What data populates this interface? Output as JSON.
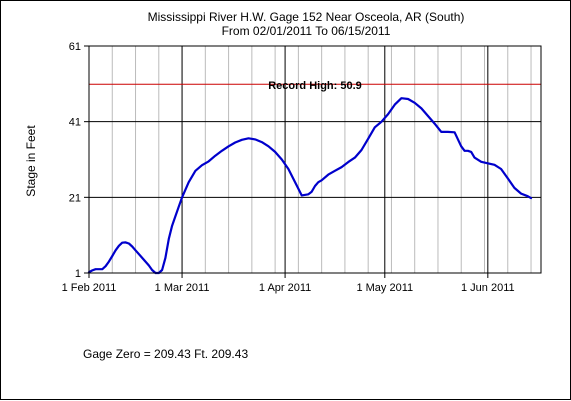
{
  "chart_data": {
    "type": "line",
    "title": "Mississippi River H.W. Gage 152 Near Osceola, AR (South)",
    "subtitle": "From 02/01/2011 To 06/15/2011",
    "xlabel": "",
    "ylabel": "Stage in Feet",
    "ylim": [
      1,
      61
    ],
    "yticks": [
      1,
      21,
      41,
      61
    ],
    "xlim": [
      "2011-02-01",
      "2011-06-17"
    ],
    "xticks": [
      {
        "date": "2011-02-01",
        "label": "1 Feb 2011"
      },
      {
        "date": "2011-03-01",
        "label": "1 Mar 2011"
      },
      {
        "date": "2011-04-01",
        "label": "1 Apr 2011"
      },
      {
        "date": "2011-05-01",
        "label": "1 May 2011"
      },
      {
        "date": "2011-06-01",
        "label": "1 Jun 2011"
      }
    ],
    "grid": true,
    "colors": {
      "series": "#0000cc",
      "record": "#cc0000",
      "grid_major": "#000000",
      "grid_minor": "#bbbbbb"
    },
    "record_high": {
      "label": "Record High: 50.9",
      "value": 50.9
    },
    "series": [
      {
        "x": [
          "2011-02-01",
          "2011-02-02",
          "2011-02-03",
          "2011-02-04",
          "2011-02-05",
          "2011-02-06",
          "2011-02-07",
          "2011-02-08",
          "2011-02-09",
          "2011-02-10",
          "2011-02-11",
          "2011-02-12",
          "2011-02-13",
          "2011-02-14",
          "2011-02-15",
          "2011-02-16",
          "2011-02-17",
          "2011-02-18",
          "2011-02-19",
          "2011-02-20",
          "2011-02-21",
          "2011-02-22",
          "2011-02-23",
          "2011-02-24",
          "2011-02-25",
          "2011-02-26",
          "2011-02-27",
          "2011-02-28",
          "2011-03-01",
          "2011-03-03",
          "2011-03-05",
          "2011-03-07",
          "2011-03-09",
          "2011-03-11",
          "2011-03-13",
          "2011-03-15",
          "2011-03-17",
          "2011-03-19",
          "2011-03-21",
          "2011-03-23",
          "2011-03-25",
          "2011-03-27",
          "2011-03-29",
          "2011-03-31",
          "2011-04-02",
          "2011-04-04",
          "2011-04-06",
          "2011-04-08",
          "2011-04-09",
          "2011-04-10",
          "2011-04-11",
          "2011-04-12",
          "2011-04-14",
          "2011-04-16",
          "2011-04-18",
          "2011-04-20",
          "2011-04-22",
          "2011-04-24",
          "2011-04-26",
          "2011-04-28",
          "2011-04-30",
          "2011-05-02",
          "2011-05-04",
          "2011-05-06",
          "2011-05-08",
          "2011-05-10",
          "2011-05-12",
          "2011-05-14",
          "2011-05-16",
          "2011-05-18",
          "2011-05-20",
          "2011-05-22",
          "2011-05-24",
          "2011-05-25",
          "2011-05-26",
          "2011-05-27",
          "2011-05-28",
          "2011-05-30",
          "2011-06-01",
          "2011-06-03",
          "2011-06-05",
          "2011-06-07",
          "2011-06-09",
          "2011-06-11",
          "2011-06-13",
          "2011-06-14"
        ],
        "values": [
          1.2,
          1.7,
          2.0,
          2.0,
          2.0,
          2.8,
          4.0,
          5.5,
          7.0,
          8.2,
          9.0,
          9.1,
          8.8,
          8.0,
          7.0,
          6.0,
          5.0,
          4.0,
          3.0,
          1.8,
          1.0,
          1.0,
          1.8,
          5.0,
          10.0,
          13.5,
          16.0,
          18.5,
          21.0,
          25.0,
          28.0,
          29.5,
          30.5,
          32.0,
          33.3,
          34.5,
          35.5,
          36.2,
          36.6,
          36.3,
          35.6,
          34.5,
          33.0,
          31.0,
          28.5,
          25.0,
          21.5,
          21.8,
          22.5,
          24.0,
          25.0,
          25.5,
          27.0,
          28.0,
          29.0,
          30.3,
          31.5,
          33.5,
          36.5,
          39.5,
          41.0,
          43.0,
          45.5,
          47.2,
          47.0,
          46.0,
          44.5,
          42.5,
          40.5,
          38.3,
          38.3,
          38.2,
          34.5,
          33.3,
          33.3,
          33.0,
          31.5,
          30.4,
          30.0,
          29.6,
          28.5,
          26.0,
          23.5,
          22.0,
          21.3,
          20.8
        ]
      }
    ]
  },
  "footer": {
    "gage_zero": "Gage Zero = 209.43 Ft. 209.43"
  }
}
